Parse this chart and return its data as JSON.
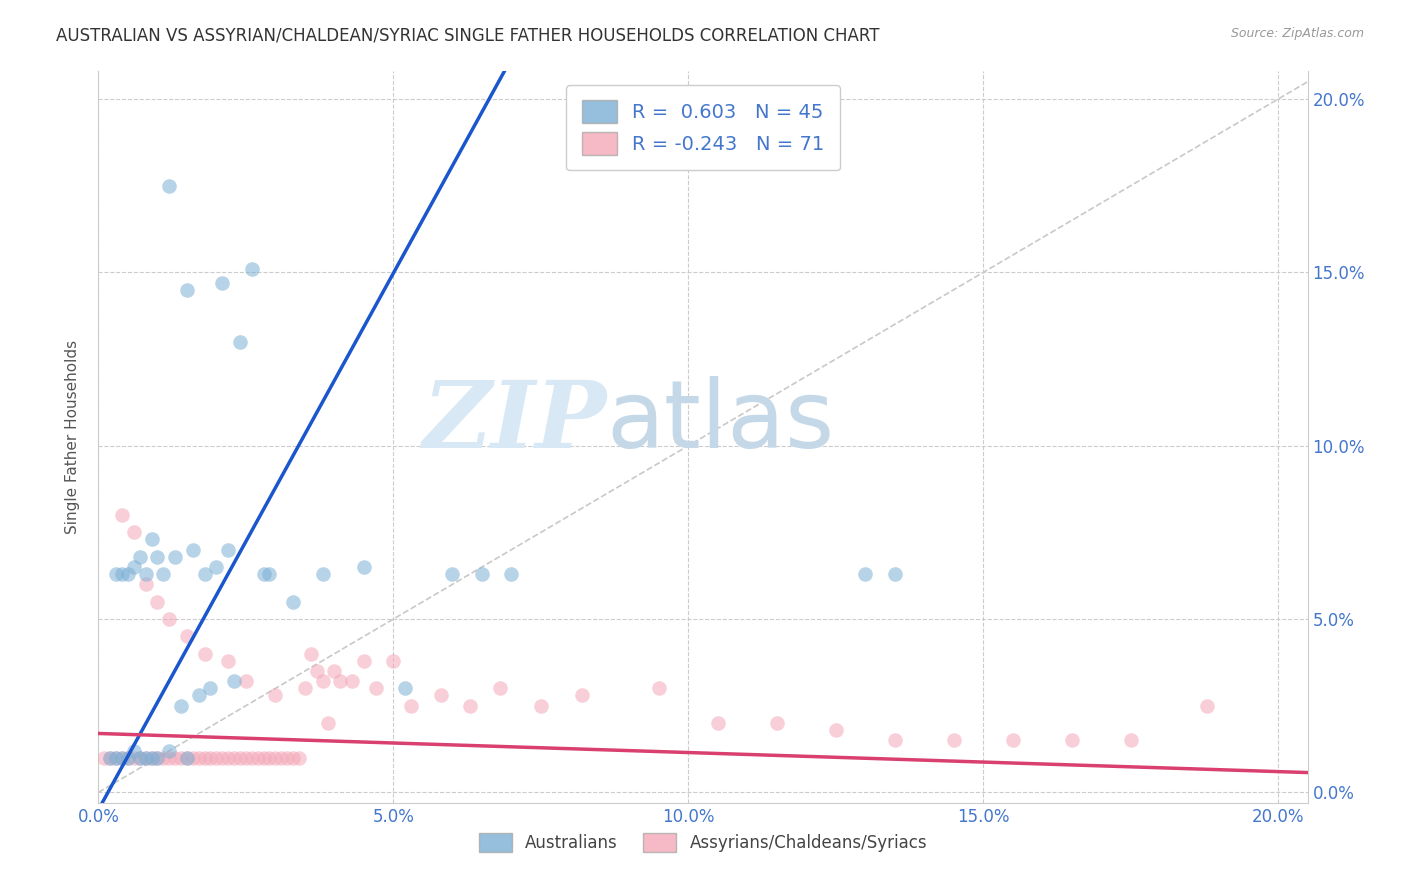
{
  "title": "AUSTRALIAN VS ASSYRIAN/CHALDEAN/SYRIAC SINGLE FATHER HOUSEHOLDS CORRELATION CHART",
  "source": "Source: ZipAtlas.com",
  "ylabel": "Single Father Households",
  "blue_R": 0.603,
  "blue_N": 45,
  "pink_R": -0.243,
  "pink_N": 71,
  "blue_color": "#7BAFD4",
  "pink_color": "#F4A8B8",
  "blue_line_color": "#1A56CC",
  "pink_line_color": "#D94070",
  "ref_line_color": "#BBBBBB",
  "watermark_zip": "ZIP",
  "watermark_atlas": "atlas",
  "xmin": 0.0,
  "xmax": 0.205,
  "ymin": -0.003,
  "ymax": 0.208,
  "blue_x": [
    0.012,
    0.021,
    0.026,
    0.024,
    0.029,
    0.015,
    0.018,
    0.016,
    0.022,
    0.02,
    0.013,
    0.011,
    0.009,
    0.007,
    0.006,
    0.005,
    0.008,
    0.01,
    0.004,
    0.003,
    0.014,
    0.017,
    0.019,
    0.023,
    0.028,
    0.033,
    0.038,
    0.045,
    0.052,
    0.06,
    0.065,
    0.07,
    0.002,
    0.003,
    0.004,
    0.005,
    0.006,
    0.007,
    0.008,
    0.009,
    0.01,
    0.012,
    0.015,
    0.13,
    0.135
  ],
  "blue_y": [
    0.175,
    0.147,
    0.151,
    0.13,
    0.063,
    0.145,
    0.063,
    0.07,
    0.07,
    0.065,
    0.068,
    0.063,
    0.073,
    0.068,
    0.065,
    0.063,
    0.063,
    0.068,
    0.063,
    0.063,
    0.025,
    0.028,
    0.03,
    0.032,
    0.063,
    0.055,
    0.063,
    0.065,
    0.03,
    0.063,
    0.063,
    0.063,
    0.01,
    0.01,
    0.01,
    0.01,
    0.012,
    0.01,
    0.01,
    0.01,
    0.01,
    0.012,
    0.01,
    0.063,
    0.063
  ],
  "pink_x": [
    0.001,
    0.002,
    0.003,
    0.004,
    0.005,
    0.006,
    0.007,
    0.008,
    0.009,
    0.01,
    0.011,
    0.012,
    0.013,
    0.014,
    0.015,
    0.016,
    0.017,
    0.018,
    0.019,
    0.02,
    0.021,
    0.022,
    0.023,
    0.024,
    0.025,
    0.026,
    0.027,
    0.028,
    0.029,
    0.03,
    0.031,
    0.032,
    0.033,
    0.034,
    0.035,
    0.036,
    0.037,
    0.038,
    0.039,
    0.04,
    0.041,
    0.043,
    0.045,
    0.047,
    0.05,
    0.053,
    0.058,
    0.063,
    0.068,
    0.075,
    0.082,
    0.095,
    0.105,
    0.115,
    0.125,
    0.135,
    0.145,
    0.155,
    0.165,
    0.175,
    0.188,
    0.004,
    0.006,
    0.008,
    0.01,
    0.012,
    0.015,
    0.018,
    0.022,
    0.025,
    0.03
  ],
  "pink_y": [
    0.01,
    0.01,
    0.01,
    0.01,
    0.01,
    0.01,
    0.01,
    0.01,
    0.01,
    0.01,
    0.01,
    0.01,
    0.01,
    0.01,
    0.01,
    0.01,
    0.01,
    0.01,
    0.01,
    0.01,
    0.01,
    0.01,
    0.01,
    0.01,
    0.01,
    0.01,
    0.01,
    0.01,
    0.01,
    0.01,
    0.01,
    0.01,
    0.01,
    0.01,
    0.03,
    0.04,
    0.035,
    0.032,
    0.02,
    0.035,
    0.032,
    0.032,
    0.038,
    0.03,
    0.038,
    0.025,
    0.028,
    0.025,
    0.03,
    0.025,
    0.028,
    0.03,
    0.02,
    0.02,
    0.018,
    0.015,
    0.015,
    0.015,
    0.015,
    0.015,
    0.025,
    0.08,
    0.075,
    0.06,
    0.055,
    0.05,
    0.045,
    0.04,
    0.038,
    0.032,
    0.028
  ],
  "yticks": [
    0.0,
    0.05,
    0.1,
    0.15,
    0.2
  ],
  "xticks": [
    0.0,
    0.05,
    0.1,
    0.15,
    0.2
  ]
}
